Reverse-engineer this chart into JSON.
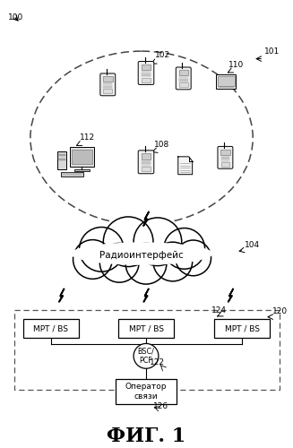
{
  "title": "ФИГ. 1",
  "label_100": "100",
  "label_101": "101",
  "label_102": "102",
  "label_104": "104",
  "label_108": "108",
  "label_110": "110",
  "label_112": "112",
  "label_120": "120",
  "label_122": "122",
  "label_124": "124",
  "label_126": "126",
  "text_radio": "Радиоинтерфейс",
  "text_bsc": "BSC/\nPCF",
  "text_operator": "Оператор\nсвязи",
  "text_mpt": "MPT / BS",
  "bg_color": "#ffffff",
  "line_color": "#000000"
}
